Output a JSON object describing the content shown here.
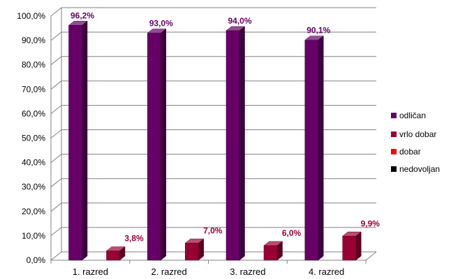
{
  "chart_data": {
    "type": "bar",
    "style": "3d-clustered-column",
    "categories": [
      "1. razred",
      "2. razred",
      "3. razred",
      "4. razred"
    ],
    "series": [
      {
        "name": "odličan",
        "values": [
          96.2,
          93.0,
          94.0,
          90.1
        ],
        "labels": [
          "96,2%",
          "93,0%",
          "94,0%",
          "90,1%"
        ],
        "color": "#660066",
        "label_color": "#660066"
      },
      {
        "name": "vrlo dobar",
        "values": [
          3.8,
          7.0,
          6.0,
          9.9
        ],
        "labels": [
          "3,8%",
          "7,0%",
          "6,0%",
          "9,9%"
        ],
        "color": "#990033",
        "label_color": "#99003d"
      },
      {
        "name": "dobar",
        "values": [
          0,
          0,
          0,
          0
        ],
        "labels": [
          "",
          "",
          "",
          ""
        ],
        "color": "#ff0000",
        "label_color": "#ff0000"
      },
      {
        "name": "nedovoljan",
        "values": [
          0,
          0,
          0,
          0
        ],
        "labels": [
          "",
          "",
          "",
          ""
        ],
        "color": "#000000",
        "label_color": "#000000"
      }
    ],
    "y_ticks": [
      "0,0%",
      "10,0%",
      "20,0%",
      "30,0%",
      "40,0%",
      "50,0%",
      "60,0%",
      "70,0%",
      "80,0%",
      "90,0%",
      "100,0%"
    ],
    "ylim": [
      0,
      100
    ],
    "grid": true,
    "legend_position": "right"
  }
}
